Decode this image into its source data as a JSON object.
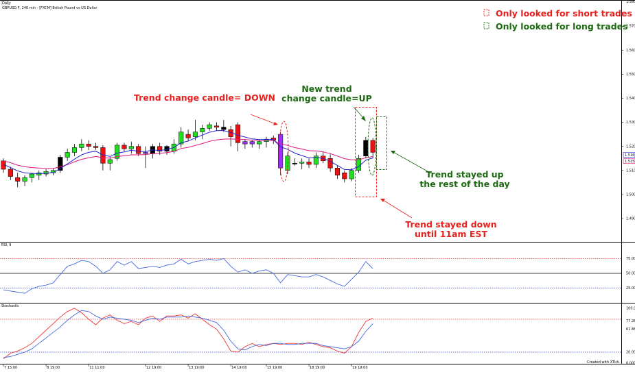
{
  "header": {
    "tab": "Daily",
    "instrument": "GBPUSD,F, 240 min - [FXCM] British Pound vs US Dollar"
  },
  "legend": {
    "items": [
      {
        "label": "Only looked for short trades",
        "color": "#e8201e"
      },
      {
        "label": "Only looked for long trades",
        "color": "#1d6a12"
      }
    ]
  },
  "annotations": {
    "trend_down": "Trend change candle= DOWN",
    "new_trend_line1": "New trend",
    "new_trend_line2": "change candle=UP",
    "stayed_up_line1": "Trend stayed up",
    "stayed_up_line2": "the rest of the day",
    "stayed_down_line1": "Trend stayed down",
    "stayed_down_line2": "until 11am EST"
  },
  "colors": {
    "bull": "#22dd22",
    "bear": "#ee1111",
    "neutral": "#000000",
    "change": "#9933ff",
    "ema_fast": "#2222cc",
    "ema_slow": "#dd1177",
    "rsi": "#4466dd",
    "stoch_k": "#4466dd",
    "stoch_d": "#ee3333",
    "grid_red": "#e33333",
    "grid_blue": "#3344cc"
  },
  "chart_data": [
    {
      "type": "candlestick",
      "title": "GBPUSD,F, 240 min - [FXCM] British Pound vs US Dollar",
      "ylim": [
        1.483,
        1.588
      ],
      "price_axis_ticks": [
        "1.5700",
        "1.5600",
        "1.5500",
        "1.5400",
        "1.5300",
        "1.5200",
        "1.5100",
        "1.5000",
        "1.4900"
      ],
      "price_top_label": "1.5800",
      "current_labels": [
        "1.5163",
        "1.5158"
      ],
      "candles": [
        {
          "o": 1.514,
          "h": 1.515,
          "l": 1.509,
          "c": 1.5105,
          "k": "bear"
        },
        {
          "o": 1.5105,
          "h": 1.5115,
          "l": 1.506,
          "c": 1.5075,
          "k": "bear"
        },
        {
          "o": 1.507,
          "h": 1.509,
          "l": 1.503,
          "c": 1.5055,
          "k": "bear"
        },
        {
          "o": 1.5055,
          "h": 1.508,
          "l": 1.5035,
          "c": 1.507,
          "k": "bull"
        },
        {
          "o": 1.507,
          "h": 1.509,
          "l": 1.505,
          "c": 1.5085,
          "k": "bull"
        },
        {
          "o": 1.508,
          "h": 1.51,
          "l": 1.506,
          "c": 1.509,
          "k": "bull"
        },
        {
          "o": 1.5085,
          "h": 1.5105,
          "l": 1.5075,
          "c": 1.5095,
          "k": "bull"
        },
        {
          "o": 1.509,
          "h": 1.511,
          "l": 1.508,
          "c": 1.51,
          "k": "bull"
        },
        {
          "o": 1.51,
          "h": 1.5165,
          "l": 1.509,
          "c": 1.5155,
          "k": "neutral"
        },
        {
          "o": 1.5155,
          "h": 1.519,
          "l": 1.514,
          "c": 1.5175,
          "k": "bull"
        },
        {
          "o": 1.5175,
          "h": 1.521,
          "l": 1.516,
          "c": 1.5195,
          "k": "bull"
        },
        {
          "o": 1.5195,
          "h": 1.523,
          "l": 1.518,
          "c": 1.521,
          "k": "bull"
        },
        {
          "o": 1.521,
          "h": 1.5225,
          "l": 1.5185,
          "c": 1.52,
          "k": "bear"
        },
        {
          "o": 1.52,
          "h": 1.5215,
          "l": 1.5185,
          "c": 1.5195,
          "k": "bear"
        },
        {
          "o": 1.5195,
          "h": 1.5205,
          "l": 1.51,
          "c": 1.513,
          "k": "bear"
        },
        {
          "o": 1.513,
          "h": 1.5155,
          "l": 1.51,
          "c": 1.5145,
          "k": "bull"
        },
        {
          "o": 1.515,
          "h": 1.5215,
          "l": 1.514,
          "c": 1.5205,
          "k": "bull"
        },
        {
          "o": 1.5205,
          "h": 1.5215,
          "l": 1.518,
          "c": 1.519,
          "k": "bear"
        },
        {
          "o": 1.519,
          "h": 1.522,
          "l": 1.517,
          "c": 1.52,
          "k": "bull"
        },
        {
          "o": 1.52,
          "h": 1.521,
          "l": 1.516,
          "c": 1.517,
          "k": "bear"
        },
        {
          "o": 1.517,
          "h": 1.52,
          "l": 1.511,
          "c": 1.5175,
          "k": "change"
        },
        {
          "o": 1.517,
          "h": 1.521,
          "l": 1.515,
          "c": 1.52,
          "k": "neutral"
        },
        {
          "o": 1.52,
          "h": 1.5215,
          "l": 1.5165,
          "c": 1.518,
          "k": "bear"
        },
        {
          "o": 1.518,
          "h": 1.5205,
          "l": 1.5165,
          "c": 1.52,
          "k": "neutral"
        },
        {
          "o": 1.518,
          "h": 1.523,
          "l": 1.517,
          "c": 1.521,
          "k": "bull"
        },
        {
          "o": 1.521,
          "h": 1.528,
          "l": 1.5195,
          "c": 1.526,
          "k": "bull"
        },
        {
          "o": 1.525,
          "h": 1.527,
          "l": 1.522,
          "c": 1.5235,
          "k": "bear"
        },
        {
          "o": 1.524,
          "h": 1.531,
          "l": 1.5225,
          "c": 1.526,
          "k": "bull"
        },
        {
          "o": 1.526,
          "h": 1.529,
          "l": 1.523,
          "c": 1.5275,
          "k": "bull"
        },
        {
          "o": 1.5275,
          "h": 1.53,
          "l": 1.5265,
          "c": 1.529,
          "k": "bull"
        },
        {
          "o": 1.5285,
          "h": 1.53,
          "l": 1.5265,
          "c": 1.528,
          "k": "bear"
        },
        {
          "o": 1.528,
          "h": 1.531,
          "l": 1.526,
          "c": 1.527,
          "k": "neutral"
        },
        {
          "o": 1.527,
          "h": 1.5285,
          "l": 1.52,
          "c": 1.524,
          "k": "bear"
        },
        {
          "o": 1.529,
          "h": 1.53,
          "l": 1.518,
          "c": 1.5215,
          "k": "bear"
        },
        {
          "o": 1.521,
          "h": 1.523,
          "l": 1.519,
          "c": 1.522,
          "k": "change"
        },
        {
          "o": 1.522,
          "h": 1.5225,
          "l": 1.5195,
          "c": 1.521,
          "k": "change"
        },
        {
          "o": 1.521,
          "h": 1.5225,
          "l": 1.519,
          "c": 1.522,
          "k": "bull"
        },
        {
          "o": 1.522,
          "h": 1.524,
          "l": 1.5195,
          "c": 1.523,
          "k": "bull"
        },
        {
          "o": 1.5235,
          "h": 1.5245,
          "l": 1.521,
          "c": 1.5225,
          "k": "bear"
        },
        {
          "o": 1.525,
          "h": 1.526,
          "l": 1.508,
          "c": 1.511,
          "k": "change"
        },
        {
          "o": 1.51,
          "h": 1.5175,
          "l": 1.5085,
          "c": 1.516,
          "k": "bull"
        },
        {
          "o": 1.513,
          "h": 1.515,
          "l": 1.512,
          "c": 1.513,
          "k": "neutral"
        },
        {
          "o": 1.513,
          "h": 1.515,
          "l": 1.5105,
          "c": 1.5135,
          "k": "bull"
        },
        {
          "o": 1.5135,
          "h": 1.515,
          "l": 1.511,
          "c": 1.5125,
          "k": "bear"
        },
        {
          "o": 1.5125,
          "h": 1.5175,
          "l": 1.511,
          "c": 1.516,
          "k": "bull"
        },
        {
          "o": 1.516,
          "h": 1.518,
          "l": 1.513,
          "c": 1.514,
          "k": "bear"
        },
        {
          "o": 1.515,
          "h": 1.517,
          "l": 1.5095,
          "c": 1.511,
          "k": "bear"
        },
        {
          "o": 1.511,
          "h": 1.512,
          "l": 1.5065,
          "c": 1.508,
          "k": "bear"
        },
        {
          "o": 1.509,
          "h": 1.51,
          "l": 1.505,
          "c": 1.5065,
          "k": "bear"
        },
        {
          "o": 1.5065,
          "h": 1.511,
          "l": 1.5055,
          "c": 1.51,
          "k": "bull"
        },
        {
          "o": 1.51,
          "h": 1.5165,
          "l": 1.509,
          "c": 1.515,
          "k": "bull"
        },
        {
          "o": 1.516,
          "h": 1.524,
          "l": 1.515,
          "c": 1.5225,
          "k": "neutral"
        },
        {
          "o": 1.5225,
          "h": 1.5235,
          "l": 1.515,
          "c": 1.5175,
          "k": "bear"
        }
      ],
      "ema_fast": [
        1.5125,
        1.5112,
        1.5098,
        1.509,
        1.5087,
        1.5087,
        1.5088,
        1.5091,
        1.5108,
        1.5127,
        1.5147,
        1.5165,
        1.5175,
        1.518,
        1.5164,
        1.5158,
        1.5172,
        1.5177,
        1.5184,
        1.518,
        1.5178,
        1.5185,
        1.5183,
        1.5187,
        1.5195,
        1.5215,
        1.5222,
        1.5235,
        1.5247,
        1.5259,
        1.5265,
        1.5266,
        1.5258,
        1.5246,
        1.5239,
        1.5231,
        1.5228,
        1.5229,
        1.5228,
        1.5198,
        1.5188,
        1.5172,
        1.5162,
        1.5152,
        1.5154,
        1.515,
        1.5138,
        1.5121,
        1.5104,
        1.5103,
        1.5116,
        1.5143,
        1.5152
      ],
      "ema_slow": [
        1.514,
        1.5132,
        1.5122,
        1.5116,
        1.5112,
        1.511,
        1.5108,
        1.5108,
        1.5115,
        1.5124,
        1.5136,
        1.5146,
        1.5153,
        1.5158,
        1.5153,
        1.5151,
        1.5158,
        1.5161,
        1.5165,
        1.5165,
        1.5166,
        1.517,
        1.5171,
        1.5174,
        1.5179,
        1.5191,
        1.5196,
        1.5204,
        1.5212,
        1.5221,
        1.5227,
        1.523,
        1.5231,
        1.5229,
        1.5228,
        1.5226,
        1.5225,
        1.5225,
        1.5225,
        1.521,
        1.5204,
        1.5195,
        1.5189,
        1.5182,
        1.5181,
        1.5177,
        1.517,
        1.516,
        1.5149,
        1.5144,
        1.5144,
        1.5153,
        1.5158
      ]
    },
    {
      "type": "line",
      "title": "RSI, 9",
      "ylim": [
        0,
        100
      ],
      "levels": [
        25,
        50,
        75
      ],
      "axis_labels": [
        "75.00",
        "50.0000",
        "25.00"
      ],
      "series": [
        {
          "values": [
            22,
            20,
            18,
            16,
            24,
            28,
            30,
            34,
            48,
            62,
            66,
            72,
            70,
            62,
            50,
            56,
            70,
            64,
            70,
            58,
            60,
            62,
            60,
            64,
            66,
            74,
            66,
            70,
            72,
            74,
            72,
            75,
            62,
            52,
            56,
            50,
            54,
            56,
            50,
            34,
            48,
            46,
            44,
            44,
            48,
            44,
            38,
            32,
            28,
            40,
            52,
            70,
            58
          ]
        }
      ]
    },
    {
      "type": "line",
      "title": "Stochastic",
      "ylim": [
        0,
        100
      ],
      "levels": [
        20,
        80
      ],
      "axis_labels": [
        "100.00",
        "77.28",
        "61.88",
        "20.00",
        "0.0000"
      ],
      "series": [
        {
          "values": [
            10,
            12,
            16,
            20,
            26,
            36,
            46,
            56,
            66,
            78,
            88,
            96,
            94,
            86,
            80,
            84,
            82,
            80,
            78,
            74,
            78,
            82,
            80,
            84,
            84,
            84,
            86,
            84,
            82,
            78,
            74,
            60,
            40,
            26,
            24,
            30,
            34,
            32,
            36,
            36,
            34,
            34,
            36,
            36,
            36,
            32,
            30,
            28,
            26,
            30,
            40,
            58,
            72
          ]
        },
        {
          "values": [
            8,
            18,
            22,
            28,
            36,
            48,
            60,
            72,
            84,
            94,
            100,
            92,
            80,
            70,
            82,
            88,
            78,
            72,
            76,
            70,
            82,
            86,
            76,
            86,
            86,
            88,
            82,
            90,
            80,
            70,
            62,
            44,
            22,
            20,
            30,
            36,
            30,
            34,
            36,
            34,
            36,
            36,
            34,
            38,
            34,
            30,
            28,
            22,
            18,
            30,
            56,
            76,
            82
          ]
        }
      ]
    }
  ],
  "time_labels": [
    "7 15:00",
    "8 19:00",
    "11 11:00",
    "12 19:00",
    "13 19:00",
    "14 19:00",
    "15 19:00",
    "18 19:00",
    "19 19:00"
  ],
  "footer": {
    "credit": "Created with XTick"
  }
}
